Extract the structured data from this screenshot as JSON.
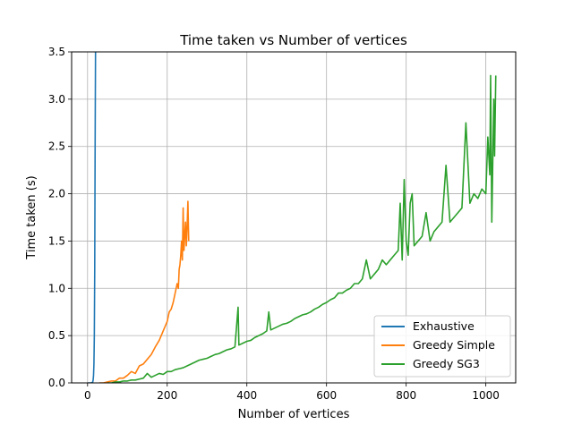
{
  "chart_data": {
    "type": "line",
    "title": "Time taken vs Number of vertices",
    "xlabel": "Number of vertices",
    "ylabel": "Time taken (s)",
    "xlim": [
      -40,
      1075
    ],
    "ylim": [
      0,
      3.5
    ],
    "x_ticks": [
      0,
      200,
      400,
      600,
      800,
      1000
    ],
    "x_tick_labels": [
      "0",
      "200",
      "400",
      "600",
      "800",
      "1000"
    ],
    "y_ticks": [
      0,
      0.5,
      1.0,
      1.5,
      2.0,
      2.5,
      3.0,
      3.5
    ],
    "y_tick_labels": [
      "0.0",
      "0.5",
      "1.0",
      "1.5",
      "2.0",
      "2.5",
      "3.0",
      "3.5"
    ],
    "grid": true,
    "legend_position": "lower right",
    "series": [
      {
        "name": "Exhaustive",
        "color": "#1f77b4",
        "x": [
          1,
          5,
          8,
          10,
          12,
          13,
          14,
          15,
          16,
          17,
          18,
          19,
          20
        ],
        "y": [
          0,
          0,
          0,
          0.001,
          0.005,
          0.01,
          0.03,
          0.08,
          0.2,
          0.5,
          1.2,
          2.5,
          3.5
        ]
      },
      {
        "name": "Greedy Simple",
        "color": "#ff7f0e",
        "x": [
          30,
          40,
          50,
          60,
          70,
          80,
          90,
          100,
          110,
          120,
          130,
          140,
          150,
          160,
          170,
          180,
          190,
          195,
          200,
          205,
          210,
          215,
          220,
          225,
          228,
          230,
          232,
          234,
          236,
          238,
          240,
          242,
          244,
          246,
          248,
          250,
          252,
          254
        ],
        "y": [
          0.0,
          0.0,
          0.01,
          0.02,
          0.02,
          0.05,
          0.05,
          0.08,
          0.12,
          0.1,
          0.18,
          0.2,
          0.25,
          0.3,
          0.38,
          0.45,
          0.55,
          0.6,
          0.65,
          0.75,
          0.78,
          0.85,
          0.95,
          1.05,
          1.0,
          1.2,
          1.25,
          1.35,
          1.5,
          1.3,
          1.85,
          1.4,
          1.55,
          1.7,
          1.45,
          1.65,
          1.92,
          1.5
        ]
      },
      {
        "name": "Greedy SG3",
        "color": "#2ca02c",
        "x": [
          50,
          60,
          70,
          80,
          90,
          100,
          110,
          120,
          130,
          140,
          150,
          160,
          170,
          180,
          190,
          200,
          210,
          220,
          230,
          240,
          250,
          260,
          270,
          280,
          290,
          300,
          310,
          320,
          330,
          340,
          350,
          360,
          370,
          378,
          380,
          390,
          400,
          410,
          420,
          430,
          440,
          450,
          455,
          460,
          470,
          480,
          490,
          500,
          510,
          520,
          530,
          540,
          550,
          560,
          570,
          580,
          590,
          600,
          610,
          620,
          630,
          640,
          650,
          660,
          670,
          680,
          690,
          700,
          710,
          720,
          730,
          740,
          750,
          760,
          770,
          780,
          785,
          790,
          795,
          800,
          805,
          810,
          815,
          820,
          830,
          840,
          850,
          860,
          870,
          880,
          890,
          900,
          910,
          920,
          930,
          940,
          950,
          960,
          970,
          980,
          990,
          1000,
          1005,
          1010,
          1012,
          1015,
          1020,
          1022,
          1025
        ],
        "y": [
          0.0,
          0.0,
          0.01,
          0.01,
          0.02,
          0.02,
          0.03,
          0.03,
          0.04,
          0.05,
          0.1,
          0.06,
          0.08,
          0.1,
          0.09,
          0.12,
          0.12,
          0.14,
          0.15,
          0.16,
          0.18,
          0.2,
          0.22,
          0.24,
          0.25,
          0.26,
          0.28,
          0.3,
          0.31,
          0.33,
          0.35,
          0.36,
          0.38,
          0.8,
          0.4,
          0.42,
          0.44,
          0.45,
          0.48,
          0.5,
          0.52,
          0.55,
          0.75,
          0.56,
          0.58,
          0.6,
          0.62,
          0.63,
          0.65,
          0.68,
          0.7,
          0.72,
          0.73,
          0.75,
          0.78,
          0.8,
          0.83,
          0.85,
          0.88,
          0.9,
          0.95,
          0.95,
          0.98,
          1.0,
          1.05,
          1.05,
          1.1,
          1.3,
          1.1,
          1.15,
          1.2,
          1.3,
          1.25,
          1.3,
          1.35,
          1.4,
          1.9,
          1.3,
          2.15,
          1.5,
          1.35,
          1.9,
          2.0,
          1.45,
          1.5,
          1.55,
          1.8,
          1.5,
          1.6,
          1.65,
          1.7,
          2.3,
          1.7,
          1.75,
          1.8,
          1.85,
          2.75,
          1.9,
          2.0,
          1.95,
          2.05,
          2.0,
          2.6,
          2.2,
          3.25,
          1.7,
          3.0,
          2.4,
          3.25
        ]
      }
    ]
  }
}
